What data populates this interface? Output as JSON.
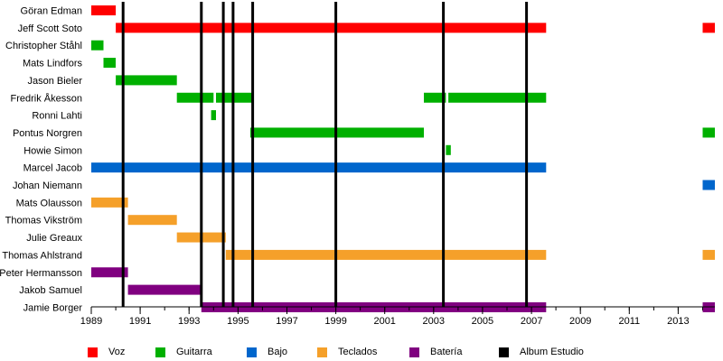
{
  "chart_data": {
    "type": "timeline",
    "title": "",
    "xlabel": "",
    "ylabel": "",
    "xlim": [
      1989,
      2014.5
    ],
    "x_ticks": [
      1989,
      1991,
      1993,
      1995,
      1997,
      1999,
      2001,
      2003,
      2005,
      2007,
      2009,
      2011,
      2013
    ],
    "grid": false,
    "legend_position": "bottom",
    "roles": [
      {
        "key": "voz",
        "name": "Voz",
        "color": "#ff0000"
      },
      {
        "key": "guitarra",
        "name": "Guitarra",
        "color": "#00b000"
      },
      {
        "key": "bajo",
        "name": "Bajo",
        "color": "#0066cc"
      },
      {
        "key": "teclados",
        "name": "Teclados",
        "color": "#f5a02a"
      },
      {
        "key": "bateria",
        "name": "Batería",
        "color": "#800080"
      },
      {
        "key": "album",
        "name": "Album Estudio",
        "color": "#000000"
      }
    ],
    "members": [
      {
        "name": "Göran Edman",
        "role": "voz",
        "periods": [
          [
            1989.0,
            1990.0
          ]
        ]
      },
      {
        "name": "Jeff Scott Soto",
        "role": "voz",
        "periods": [
          [
            1990.0,
            2007.6
          ],
          [
            2014.0,
            2014.5
          ]
        ]
      },
      {
        "name": "Christopher Ståhl",
        "role": "guitarra",
        "periods": [
          [
            1989.0,
            1989.5
          ]
        ]
      },
      {
        "name": "Mats Lindfors",
        "role": "guitarra",
        "periods": [
          [
            1989.5,
            1990.0
          ]
        ]
      },
      {
        "name": "Jason Bieler",
        "role": "guitarra",
        "periods": [
          [
            1990.0,
            1992.5
          ]
        ]
      },
      {
        "name": "Fredrik Åkesson",
        "role": "guitarra",
        "periods": [
          [
            1992.5,
            1994.0
          ],
          [
            1994.1,
            1995.6
          ],
          [
            2002.6,
            2003.5
          ],
          [
            2003.6,
            2007.6
          ]
        ]
      },
      {
        "name": "Ronni Lahti",
        "role": "guitarra",
        "periods": [
          [
            1993.9,
            1994.1
          ]
        ]
      },
      {
        "name": "Pontus Norgren",
        "role": "guitarra",
        "periods": [
          [
            1995.5,
            2002.6
          ],
          [
            2014.0,
            2014.5
          ]
        ]
      },
      {
        "name": "Howie Simon",
        "role": "guitarra",
        "periods": [
          [
            2003.5,
            2003.7
          ]
        ]
      },
      {
        "name": "Marcel Jacob",
        "role": "bajo",
        "periods": [
          [
            1989.0,
            2007.6
          ]
        ]
      },
      {
        "name": "Johan Niemann",
        "role": "bajo",
        "periods": [
          [
            2014.0,
            2014.5
          ]
        ]
      },
      {
        "name": "Mats Olausson",
        "role": "teclados",
        "periods": [
          [
            1989.0,
            1990.5
          ]
        ]
      },
      {
        "name": "Thomas Vikström",
        "role": "teclados",
        "periods": [
          [
            1990.5,
            1992.5
          ]
        ]
      },
      {
        "name": "Julie Greaux",
        "role": "teclados",
        "periods": [
          [
            1992.5,
            1994.5
          ]
        ]
      },
      {
        "name": "Thomas Ahlstrand",
        "role": "teclados",
        "periods": [
          [
            1994.5,
            2007.6
          ],
          [
            2014.0,
            2014.5
          ]
        ]
      },
      {
        "name": "Peter Hermansson",
        "role": "bateria",
        "periods": [
          [
            1989.0,
            1990.5
          ]
        ]
      },
      {
        "name": "Jakob Samuel",
        "role": "bateria",
        "periods": [
          [
            1990.5,
            1993.5
          ]
        ]
      },
      {
        "name": "Jamie Borger",
        "role": "bateria",
        "periods": [
          [
            1993.5,
            2007.6
          ],
          [
            2014.0,
            2014.5
          ]
        ]
      }
    ],
    "albums": [
      1990.3,
      1993.5,
      1994.4,
      1994.8,
      1995.6,
      1999.0,
      2003.4,
      2006.8
    ]
  }
}
